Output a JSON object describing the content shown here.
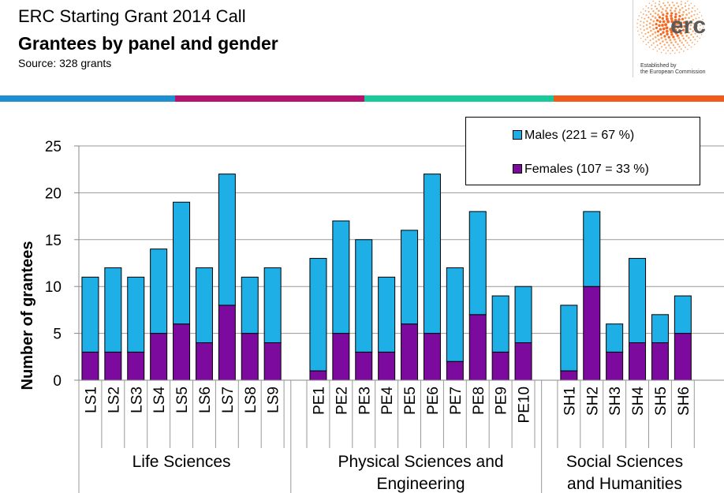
{
  "header": {
    "title": "ERC Starting Grant 2014 Call",
    "subtitle": "Grantees by panel and gender",
    "source": "Source: 328 grants"
  },
  "logo": {
    "text": "erc",
    "caption_line1": "Established by",
    "caption_line2": "the European Commission"
  },
  "colors": {
    "males": "#1EAFE6",
    "females": "#7D0A9E",
    "band": [
      "#1E8FD0",
      "#B4126E",
      "#19C99A",
      "#F05A1A"
    ]
  },
  "chart_data": {
    "type": "bar",
    "stacked": true,
    "ylabel": "Number of grantees",
    "ylim": [
      0,
      25
    ],
    "yticks": [
      0,
      5,
      10,
      15,
      20,
      25
    ],
    "grid": true,
    "legend_position": "top-right",
    "categories": [
      "LS1",
      "LS2",
      "LS3",
      "LS4",
      "LS5",
      "LS6",
      "LS7",
      "LS8",
      "LS9",
      "PE1",
      "PE2",
      "PE3",
      "PE4",
      "PE5",
      "PE6",
      "PE7",
      "PE8",
      "PE9",
      "PE10",
      "SH1",
      "SH2",
      "SH3",
      "SH4",
      "SH5",
      "SH6"
    ],
    "groups": [
      {
        "name": "Life Sciences",
        "size": 9
      },
      {
        "name": "Physical Sciences and Engineering",
        "size": 10
      },
      {
        "name": "Social Sciences and Humanities",
        "size": 6
      }
    ],
    "series": [
      {
        "name": "Females (107 = 33 %)",
        "values": [
          3,
          3,
          3,
          5,
          6,
          4,
          8,
          5,
          4,
          1,
          5,
          3,
          3,
          6,
          5,
          2,
          7,
          3,
          4,
          1,
          10,
          3,
          4,
          4,
          5
        ]
      },
      {
        "name": "Males (221 = 67 %)",
        "values": [
          8,
          9,
          8,
          9,
          13,
          8,
          14,
          6,
          8,
          12,
          12,
          12,
          8,
          10,
          17,
          10,
          11,
          6,
          6,
          7,
          8,
          3,
          9,
          3,
          4
        ]
      }
    ]
  }
}
